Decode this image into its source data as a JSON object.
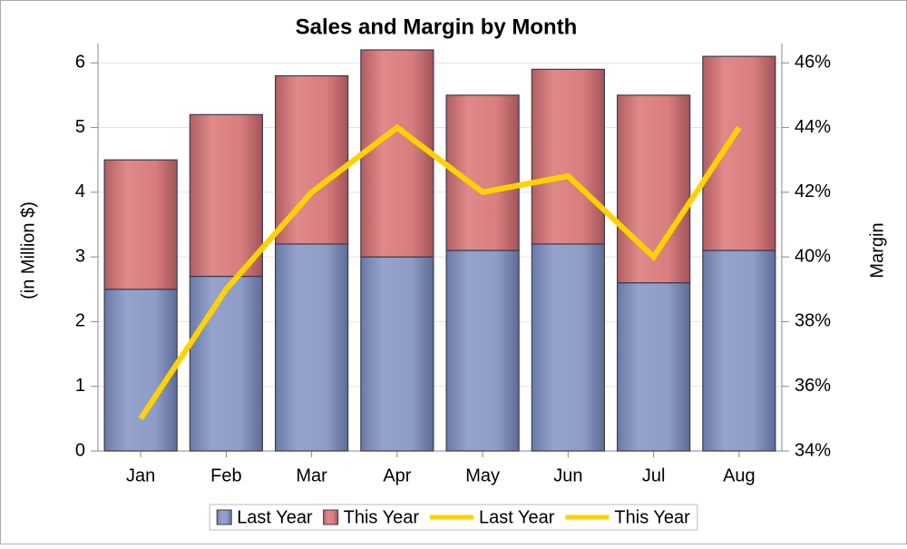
{
  "chart_data": {
    "type": "bar",
    "title": "Sales and Margin by Month",
    "ylabel": "(in Million $)",
    "y2label": "Margin",
    "categories": [
      "Jan",
      "Feb",
      "Mar",
      "Apr",
      "May",
      "Jun",
      "Jul",
      "Aug"
    ],
    "series": [
      {
        "name": "Last Year",
        "color": "#8e9cc6",
        "values": [
          2.5,
          2.7,
          3.2,
          3.0,
          3.1,
          3.2,
          2.6,
          3.1
        ]
      },
      {
        "name": "This Year",
        "color": "#d97d7d",
        "values": [
          2.0,
          2.5,
          2.6,
          3.2,
          2.4,
          2.7,
          2.9,
          3.0
        ]
      },
      {
        "name": "Last Year",
        "color": "#ffd200",
        "axis": "y2",
        "values": [
          35,
          39,
          42,
          44,
          42,
          42.5,
          40,
          44
        ]
      },
      {
        "name": "This Year",
        "color": "#ffd200",
        "axis": "y2",
        "values": [
          35,
          39,
          42,
          44,
          42,
          42.5,
          40,
          44
        ]
      }
    ],
    "stacked": true,
    "ylim": [
      0,
      6.2
    ],
    "yticks": [
      0,
      1,
      2,
      3,
      4,
      5,
      6
    ],
    "y2lim": [
      34,
      46.4
    ],
    "y2ticks": [
      {
        "value": 34,
        "label": "34%"
      },
      {
        "value": 36,
        "label": "36%"
      },
      {
        "value": 38,
        "label": "38%"
      },
      {
        "value": 40,
        "label": "40%"
      },
      {
        "value": 42,
        "label": "42%"
      },
      {
        "value": 44,
        "label": "44%"
      },
      {
        "value": 46,
        "label": "46%"
      }
    ],
    "grid": true,
    "legend": "bottom"
  }
}
